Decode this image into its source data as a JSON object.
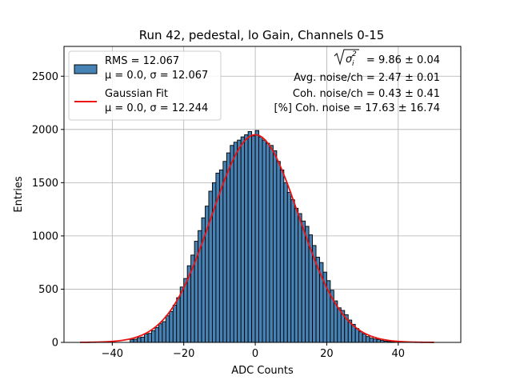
{
  "chart_data": {
    "type": "bar",
    "title": "Run 42, pedestal, lo Gain, Channels 0-15",
    "xlabel": "ADC Counts",
    "ylabel": "Entries",
    "xlim": [
      -53.5,
      57.5
    ],
    "ylim": [
      0,
      2780
    ],
    "xticks": [
      -40,
      -20,
      0,
      20,
      40
    ],
    "yticks": [
      0,
      500,
      1000,
      1500,
      2000,
      2500
    ],
    "grid": true,
    "legend_position": "top-left",
    "histogram": {
      "name": "RMS = 12.067",
      "stats": "μ = 0.0, σ = 12.067",
      "color": "#4682b4",
      "edge_color": "#000000",
      "bin_width": 1,
      "bin_centers": [
        -34.5,
        -33.5,
        -32.5,
        -31.5,
        -30.5,
        -29.5,
        -28.5,
        -27.5,
        -26.5,
        -25.5,
        -24.5,
        -23.5,
        -22.5,
        -21.5,
        -20.5,
        -19.5,
        -18.5,
        -17.5,
        -16.5,
        -15.5,
        -14.5,
        -13.5,
        -12.5,
        -11.5,
        -10.5,
        -9.5,
        -8.5,
        -7.5,
        -6.5,
        -5.5,
        -4.5,
        -3.5,
        -2.5,
        -1.5,
        -0.5,
        0.5,
        1.5,
        2.5,
        3.5,
        4.5,
        5.5,
        6.5,
        7.5,
        8.5,
        9.5,
        10.5,
        11.5,
        12.5,
        13.5,
        14.5,
        15.5,
        16.5,
        17.5,
        18.5,
        19.5,
        20.5,
        21.5,
        22.5,
        23.5,
        24.5,
        25.5,
        26.5,
        27.5,
        28.5,
        29.5,
        30.5,
        31.5,
        32.5,
        33.5,
        34.5,
        35.5,
        36.5,
        37.5,
        38.5,
        39.5
      ],
      "values": [
        28,
        30,
        45,
        50,
        78,
        85,
        110,
        140,
        175,
        195,
        250,
        290,
        350,
        420,
        520,
        600,
        720,
        820,
        950,
        1050,
        1170,
        1280,
        1420,
        1500,
        1590,
        1620,
        1700,
        1780,
        1850,
        1880,
        1900,
        1930,
        1950,
        1980,
        1940,
        1990,
        1930,
        1900,
        1870,
        1850,
        1800,
        1700,
        1620,
        1500,
        1410,
        1340,
        1260,
        1210,
        1140,
        1090,
        1010,
        910,
        800,
        750,
        660,
        580,
        490,
        390,
        325,
        300,
        260,
        210,
        170,
        130,
        100,
        78,
        55,
        40,
        32,
        28,
        18,
        12,
        8,
        4,
        3
      ]
    },
    "fit": {
      "name": "Gaussian Fit",
      "stats": "μ = 0.0, σ = 12.244",
      "color": "#ee1111",
      "mu": 0.0,
      "sigma": 12.244,
      "amplitude": 1950,
      "x_range": [
        -49,
        50
      ]
    },
    "annotations": {
      "sqrt_label": "= 9.86 ± 0.04",
      "sigma_symbol": "σ",
      "sigma_sub": "i",
      "sigma_sup": "2",
      "lines": [
        "Avg. noise/ch = 2.47 ± 0.01",
        "Coh. noise/ch = 0.43 ± 0.41",
        "[%] Coh. noise = 17.63 ± 16.74"
      ]
    }
  }
}
